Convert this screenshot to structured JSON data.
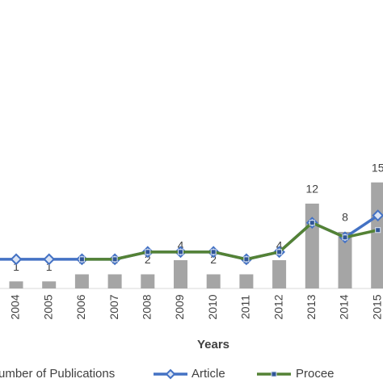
{
  "chart_data": {
    "type": "bar",
    "x_label": "Years",
    "categories": [
      null,
      "2004",
      "2005",
      "2006",
      "2007",
      "2008",
      "2009",
      "2010",
      "2011",
      "2012",
      "2013",
      "2014",
      "2015"
    ],
    "ylim": [
      0,
      16
    ],
    "y2lim": [
      -3,
      12.5
    ],
    "series": [
      {
        "name": "umber of Publications",
        "type": "bar",
        "color": "#a5a5a5",
        "values": [
          null,
          1,
          1,
          2,
          2,
          2,
          4,
          2,
          2,
          4,
          12,
          8,
          15
        ]
      },
      {
        "name": "Article",
        "type": "line",
        "axis": "y2",
        "color": "#4472c4",
        "marker": "diamond",
        "values": [
          1,
          1,
          1,
          1,
          1,
          2,
          2,
          2,
          1,
          2,
          6,
          4,
          7
        ]
      },
      {
        "name": "Procee",
        "type": "line",
        "axis": "y2",
        "color": "#548235",
        "marker": "square",
        "values": [
          null,
          null,
          null,
          1,
          1,
          2,
          2,
          2,
          1,
          2,
          6,
          4,
          5
        ]
      }
    ]
  }
}
